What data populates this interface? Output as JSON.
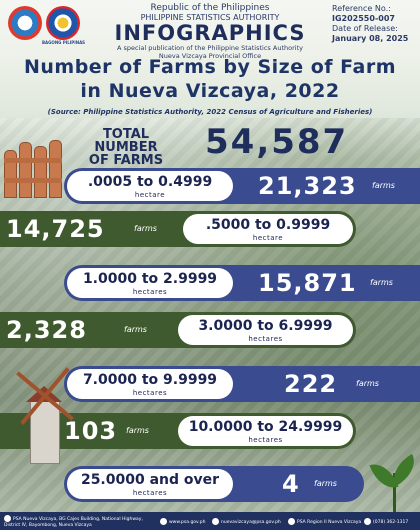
{
  "header": {
    "line1": "Republic of the Philippines",
    "line2": "PHILIPPINE STATISTICS AUTHORITY",
    "line3": "INFOGRAPHICS",
    "line4": "A special publication of the Philippine Statistics Authority",
    "line5": "Nueva Vizcaya Provincial Office",
    "logo2_caption": "BAGONG PILIPINAS"
  },
  "reference": {
    "label": "Reference No.:",
    "value": "IG202550-007",
    "date_label": "Date of Release:",
    "date_value": "January 08, 2025"
  },
  "title": {
    "line1": "Number of Farms by Size of Farm",
    "line2": "in Nueva Vizcaya, 2022"
  },
  "source": "(Source: Philippine Statistics Authority, 2022 Census of Agriculture and Fisheries)",
  "total": {
    "label_line1": "TOTAL NUMBER",
    "label_line2": "OF FARMS",
    "value": "54,587"
  },
  "rows": [
    {
      "range": ".0005 to 0.4999",
      "unit": "hectare",
      "count": "21,323",
      "farms_label": "farms"
    },
    {
      "range": ".5000 to 0.9999",
      "unit": "hectare",
      "count": "14,725",
      "farms_label": "farms"
    },
    {
      "range": "1.0000 to 2.9999",
      "unit": "hectares",
      "count": "15,871",
      "farms_label": "farms"
    },
    {
      "range": "3.0000 to 6.9999",
      "unit": "hectares",
      "count": "2,328",
      "farms_label": "farms"
    },
    {
      "range": "7.0000 to 9.9999",
      "unit": "hectares",
      "count": "222",
      "farms_label": "farms"
    },
    {
      "range": "10.0000 to 24.9999",
      "unit": "hectares",
      "count": "103",
      "farms_label": "farms"
    },
    {
      "range": "25.0000 and over",
      "unit": "hectares",
      "count": "4",
      "farms_label": "farms"
    }
  ],
  "footer": {
    "address": "PSA Nueva Vizcaya, BG Cajes Building, National Highway, District IV, Bayombong, Nueva Vizcaya",
    "website": "www.psa.gov.ph",
    "email": "nuevavizcaya@psa.gov.ph",
    "facebook": "PSA Region II Nueva Vizcaya",
    "phone": "(078) 362-1317"
  },
  "colors": {
    "navy": "#1f2d5c",
    "band_blue": "#3a4b8f",
    "band_green": "#3f5a2f",
    "footer": "#20305f"
  }
}
